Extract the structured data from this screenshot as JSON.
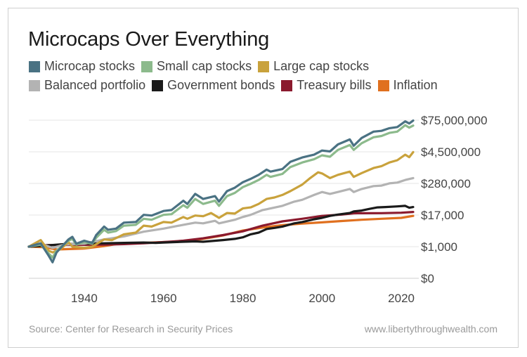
{
  "chart_data": {
    "type": "line",
    "title": "Microcaps Over Everything",
    "xlabel": "",
    "ylabel": "",
    "x_ticks": [
      1940,
      1960,
      1980,
      2000,
      2020
    ],
    "xlim": [
      1926,
      2023
    ],
    "y_ticks": [
      {
        "label": "$0",
        "level": 0
      },
      {
        "label": "$1,000",
        "level": 1
      },
      {
        "label": "$17,000",
        "level": 2
      },
      {
        "label": "$280,000",
        "level": 3
      },
      {
        "label": "$4,500,000",
        "level": 4
      },
      {
        "label": "$75,000,000",
        "level": 5
      }
    ],
    "gridlines": true,
    "legend_placement": "top-left",
    "series": [
      {
        "name": "Microcap stocks",
        "color": "#4a7283",
        "points": [
          [
            1926,
            1000
          ],
          [
            1929,
            1350
          ],
          [
            1931,
            450
          ],
          [
            1932,
            250
          ],
          [
            1933,
            600
          ],
          [
            1936,
            1900
          ],
          [
            1937,
            2400
          ],
          [
            1938,
            1300
          ],
          [
            1940,
            1700
          ],
          [
            1942,
            1400
          ],
          [
            1943,
            2800
          ],
          [
            1945,
            6000
          ],
          [
            1946,
            4500
          ],
          [
            1948,
            5000
          ],
          [
            1950,
            8500
          ],
          [
            1953,
            9000
          ],
          [
            1955,
            17000
          ],
          [
            1957,
            16000
          ],
          [
            1960,
            24000
          ],
          [
            1962,
            26000
          ],
          [
            1965,
            60000
          ],
          [
            1966,
            45000
          ],
          [
            1968,
            110000
          ],
          [
            1970,
            70000
          ],
          [
            1973,
            90000
          ],
          [
            1974,
            55000
          ],
          [
            1976,
            140000
          ],
          [
            1978,
            190000
          ],
          [
            1980,
            310000
          ],
          [
            1982,
            420000
          ],
          [
            1984,
            600000
          ],
          [
            1986,
            950000
          ],
          [
            1987,
            800000
          ],
          [
            1990,
            1000000
          ],
          [
            1992,
            1900000
          ],
          [
            1995,
            2800000
          ],
          [
            1998,
            3600000
          ],
          [
            2000,
            5200000
          ],
          [
            2002,
            4800000
          ],
          [
            2004,
            9000000
          ],
          [
            2007,
            14000000
          ],
          [
            2008,
            8000000
          ],
          [
            2010,
            16000000
          ],
          [
            2013,
            28000000
          ],
          [
            2015,
            30000000
          ],
          [
            2017,
            38000000
          ],
          [
            2019,
            42000000
          ],
          [
            2021,
            70000000
          ],
          [
            2022,
            58000000
          ],
          [
            2023,
            75000000
          ]
        ]
      },
      {
        "name": "Small cap stocks",
        "color": "#8cba8c",
        "points": [
          [
            1926,
            1000
          ],
          [
            1929,
            1200
          ],
          [
            1931,
            550
          ],
          [
            1932,
            380
          ],
          [
            1933,
            700
          ],
          [
            1936,
            1700
          ],
          [
            1937,
            2000
          ],
          [
            1938,
            1200
          ],
          [
            1940,
            1500
          ],
          [
            1942,
            1300
          ],
          [
            1943,
            2200
          ],
          [
            1945,
            4500
          ],
          [
            1946,
            3500
          ],
          [
            1948,
            4000
          ],
          [
            1950,
            6500
          ],
          [
            1953,
            7000
          ],
          [
            1955,
            12000
          ],
          [
            1957,
            11000
          ],
          [
            1960,
            17000
          ],
          [
            1962,
            18000
          ],
          [
            1965,
            40000
          ],
          [
            1966,
            32000
          ],
          [
            1968,
            70000
          ],
          [
            1970,
            45000
          ],
          [
            1973,
            60000
          ],
          [
            1974,
            38000
          ],
          [
            1976,
            90000
          ],
          [
            1978,
            120000
          ],
          [
            1980,
            200000
          ],
          [
            1982,
            270000
          ],
          [
            1984,
            380000
          ],
          [
            1986,
            600000
          ],
          [
            1987,
            500000
          ],
          [
            1990,
            650000
          ],
          [
            1992,
            1200000
          ],
          [
            1995,
            1800000
          ],
          [
            1998,
            2400000
          ],
          [
            2000,
            3400000
          ],
          [
            2002,
            3000000
          ],
          [
            2004,
            5500000
          ],
          [
            2007,
            8500000
          ],
          [
            2008,
            5500000
          ],
          [
            2010,
            10000000
          ],
          [
            2013,
            17000000
          ],
          [
            2015,
            19000000
          ],
          [
            2017,
            25000000
          ],
          [
            2019,
            28000000
          ],
          [
            2021,
            50000000
          ],
          [
            2022,
            40000000
          ],
          [
            2023,
            48000000
          ]
        ]
      },
      {
        "name": "Large cap stocks",
        "color": "#c9a23c",
        "points": [
          [
            1926,
            1000
          ],
          [
            1929,
            1800
          ],
          [
            1931,
            700
          ],
          [
            1932,
            600
          ],
          [
            1934,
            800
          ],
          [
            1936,
            1500
          ],
          [
            1937,
            1000
          ],
          [
            1940,
            900
          ],
          [
            1942,
            1000
          ],
          [
            1945,
            1900
          ],
          [
            1947,
            1800
          ],
          [
            1950,
            3000
          ],
          [
            1953,
            3500
          ],
          [
            1955,
            6500
          ],
          [
            1957,
            6000
          ],
          [
            1960,
            9000
          ],
          [
            1962,
            8500
          ],
          [
            1965,
            14000
          ],
          [
            1966,
            12000
          ],
          [
            1968,
            16000
          ],
          [
            1970,
            15000
          ],
          [
            1972,
            20000
          ],
          [
            1974,
            13000
          ],
          [
            1976,
            20000
          ],
          [
            1978,
            19000
          ],
          [
            1980,
            30000
          ],
          [
            1982,
            33000
          ],
          [
            1984,
            45000
          ],
          [
            1986,
            70000
          ],
          [
            1988,
            80000
          ],
          [
            1990,
            100000
          ],
          [
            1992,
            140000
          ],
          [
            1995,
            250000
          ],
          [
            1997,
            450000
          ],
          [
            1999,
            750000
          ],
          [
            2000,
            680000
          ],
          [
            2002,
            450000
          ],
          [
            2004,
            600000
          ],
          [
            2007,
            800000
          ],
          [
            2008,
            500000
          ],
          [
            2010,
            700000
          ],
          [
            2013,
            1100000
          ],
          [
            2015,
            1300000
          ],
          [
            2017,
            1800000
          ],
          [
            2019,
            2200000
          ],
          [
            2021,
            3600000
          ],
          [
            2022,
            2900000
          ],
          [
            2023,
            4500000
          ]
        ]
      },
      {
        "name": "Balanced portfolio",
        "color": "#b3b3b3",
        "points": [
          [
            1926,
            1000
          ],
          [
            1929,
            1300
          ],
          [
            1932,
            900
          ],
          [
            1935,
            1200
          ],
          [
            1937,
            1250
          ],
          [
            1940,
            1300
          ],
          [
            1945,
            1900
          ],
          [
            1950,
            2500
          ],
          [
            1955,
            3800
          ],
          [
            1960,
            5000
          ],
          [
            1965,
            7000
          ],
          [
            1968,
            8500
          ],
          [
            1970,
            8000
          ],
          [
            1973,
            10000
          ],
          [
            1974,
            8000
          ],
          [
            1978,
            11000
          ],
          [
            1980,
            14000
          ],
          [
            1982,
            17000
          ],
          [
            1985,
            26000
          ],
          [
            1987,
            30000
          ],
          [
            1990,
            38000
          ],
          [
            1993,
            55000
          ],
          [
            1995,
            65000
          ],
          [
            1998,
            100000
          ],
          [
            2000,
            130000
          ],
          [
            2002,
            110000
          ],
          [
            2004,
            130000
          ],
          [
            2007,
            170000
          ],
          [
            2008,
            130000
          ],
          [
            2010,
            170000
          ],
          [
            2013,
            220000
          ],
          [
            2015,
            230000
          ],
          [
            2017,
            280000
          ],
          [
            2019,
            300000
          ],
          [
            2021,
            380000
          ],
          [
            2023,
            450000
          ]
        ]
      },
      {
        "name": "Government bonds",
        "color": "#1a1a1a",
        "points": [
          [
            1926,
            1000
          ],
          [
            1930,
            1100
          ],
          [
            1935,
            1250
          ],
          [
            1940,
            1300
          ],
          [
            1945,
            1350
          ],
          [
            1950,
            1400
          ],
          [
            1955,
            1450
          ],
          [
            1958,
            1400
          ],
          [
            1960,
            1450
          ],
          [
            1965,
            1550
          ],
          [
            1968,
            1600
          ],
          [
            1970,
            1550
          ],
          [
            1975,
            1800
          ],
          [
            1978,
            2000
          ],
          [
            1980,
            2300
          ],
          [
            1982,
            3000
          ],
          [
            1984,
            3500
          ],
          [
            1986,
            4800
          ],
          [
            1988,
            5300
          ],
          [
            1990,
            6000
          ],
          [
            1993,
            8000
          ],
          [
            1995,
            9000
          ],
          [
            1998,
            11500
          ],
          [
            2000,
            13000
          ],
          [
            2002,
            15500
          ],
          [
            2004,
            17500
          ],
          [
            2007,
            20000
          ],
          [
            2008,
            23000
          ],
          [
            2010,
            25000
          ],
          [
            2012,
            29000
          ],
          [
            2014,
            33000
          ],
          [
            2016,
            34000
          ],
          [
            2019,
            36000
          ],
          [
            2021,
            38000
          ],
          [
            2022,
            32000
          ],
          [
            2023,
            34000
          ]
        ]
      },
      {
        "name": "Treasury bills",
        "color": "#8b1a2e",
        "points": [
          [
            1926,
            1000
          ],
          [
            1930,
            1150
          ],
          [
            1935,
            1170
          ],
          [
            1940,
            1180
          ],
          [
            1945,
            1200
          ],
          [
            1950,
            1250
          ],
          [
            1955,
            1350
          ],
          [
            1960,
            1500
          ],
          [
            1965,
            1700
          ],
          [
            1970,
            2100
          ],
          [
            1975,
            2800
          ],
          [
            1980,
            3900
          ],
          [
            1985,
            6500
          ],
          [
            1990,
            9500
          ],
          [
            1995,
            12000
          ],
          [
            2000,
            15500
          ],
          [
            2005,
            17500
          ],
          [
            2008,
            19500
          ],
          [
            2010,
            19700
          ],
          [
            2015,
            19800
          ],
          [
            2020,
            20500
          ],
          [
            2023,
            22000
          ]
        ]
      },
      {
        "name": "Inflation",
        "color": "#e0701f",
        "points": [
          [
            1926,
            1000
          ],
          [
            1930,
            950
          ],
          [
            1933,
            780
          ],
          [
            1940,
            850
          ],
          [
            1945,
            1050
          ],
          [
            1948,
            1250
          ],
          [
            1950,
            1300
          ],
          [
            1955,
            1400
          ],
          [
            1960,
            1500
          ],
          [
            1965,
            1600
          ],
          [
            1970,
            2000
          ],
          [
            1975,
            2700
          ],
          [
            1980,
            4200
          ],
          [
            1985,
            5500
          ],
          [
            1990,
            6800
          ],
          [
            1995,
            7800
          ],
          [
            2000,
            8700
          ],
          [
            2005,
            9800
          ],
          [
            2010,
            11000
          ],
          [
            2015,
            12000
          ],
          [
            2020,
            13000
          ],
          [
            2023,
            15500
          ]
        ]
      }
    ]
  },
  "footer": {
    "source": "Source: Center for Research in Security Prices",
    "site": "www.libertythroughwealth.com"
  }
}
